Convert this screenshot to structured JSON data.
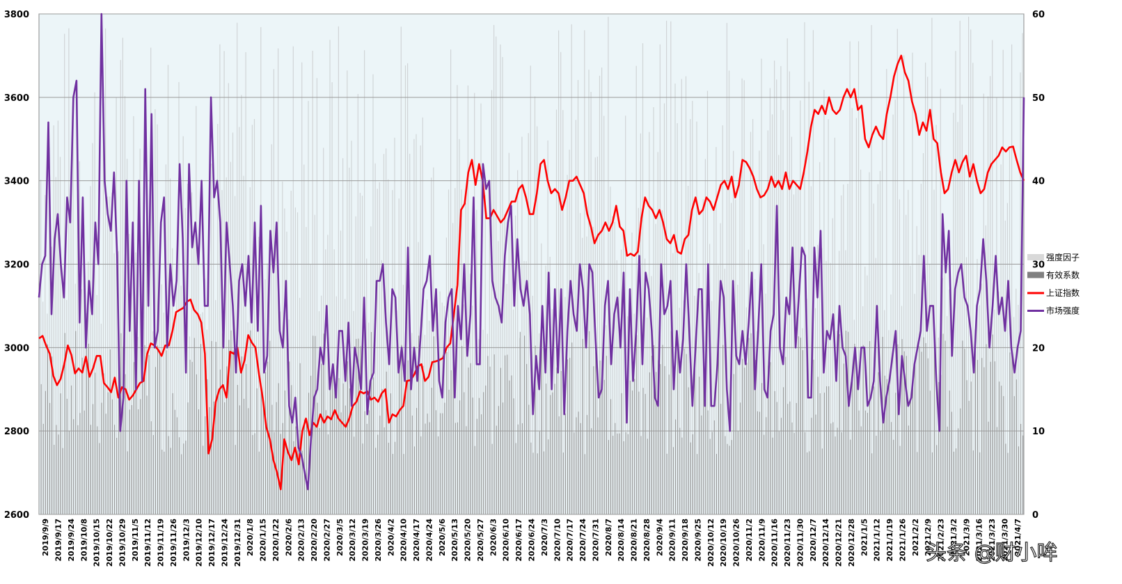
{
  "chart_data": {
    "type": "line",
    "title": "",
    "left_axis": {
      "min": 2600,
      "max": 3800,
      "ticks": [
        2600,
        2800,
        3000,
        3200,
        3400,
        3600,
        3800
      ]
    },
    "right_axis": {
      "min": 0,
      "max": 60,
      "ticks": [
        0,
        10,
        20,
        30,
        40,
        50,
        60
      ]
    },
    "x_labels": [
      "2019/9/9",
      "2019/9/17",
      "2019/9/24",
      "2019/10/8",
      "2019/10/15",
      "2019/10/22",
      "2019/10/29",
      "2019/11/5",
      "2019/11/12",
      "2019/11/19",
      "2019/11/26",
      "2019/12/3",
      "2019/12/10",
      "2019/12/17",
      "2019/12/24",
      "2019/12/31",
      "2020/1/8",
      "2020/1/15",
      "2020/1/22",
      "2020/2/6",
      "2020/2/13",
      "2020/2/20",
      "2020/2/27",
      "2020/3/5",
      "2020/3/12",
      "2020/3/19",
      "2020/3/26",
      "2020/4/2",
      "2020/4/10",
      "2020/4/17",
      "2020/4/24",
      "2020/5/6",
      "2020/5/13",
      "2020/5/20",
      "2020/5/27",
      "2020/6/3",
      "2020/6/10",
      "2020/6/17",
      "2020/6/24",
      "2020/7/3",
      "2020/7/10",
      "2020/7/17",
      "2020/7/24",
      "2020/7/31",
      "2020/8/7",
      "2020/8/14",
      "2020/8/21",
      "2020/8/28",
      "2020/9/4",
      "2020/9/11",
      "2020/9/18",
      "2020/9/25",
      "2020/10/12",
      "2020/10/19",
      "2020/10/26",
      "2020/11/2",
      "2020/11/9",
      "2020/11/16",
      "2020/11/23",
      "2020/11/30",
      "2020/12/7",
      "2020/12/14",
      "2020/12/21",
      "2020/12/28",
      "2021/1/5",
      "2021/1/12",
      "2021/1/19",
      "2021/1/26",
      "2021/2/2",
      "2021/2/9",
      "2021/2/23",
      "2021/3/2",
      "2021/3/9",
      "2021/3/16",
      "2021/3/23",
      "2021/3/30",
      "2021/4/7"
    ],
    "series": [
      {
        "name": "上证指数",
        "axis": "left",
        "color": "#ff0000",
        "values": [
          3022,
          3028,
          3004,
          2985,
          2932,
          2910,
          2925,
          2960,
          3005,
          2982,
          2938,
          2950,
          2940,
          2978,
          2930,
          2950,
          2980,
          2980,
          2915,
          2905,
          2893,
          2928,
          2880,
          2905,
          2900,
          2875,
          2885,
          2900,
          2915,
          2920,
          2985,
          3010,
          3005,
          2995,
          2980,
          3005,
          3005,
          3040,
          3085,
          3090,
          3095,
          3110,
          3115,
          3090,
          3080,
          3060,
          2985,
          2746,
          2780,
          2870,
          2900,
          2910,
          2880,
          2990,
          2985,
          3000,
          2940,
          2970,
          3030,
          3012,
          3000,
          2935,
          2880,
          2810,
          2780,
          2730,
          2700,
          2660,
          2780,
          2750,
          2730,
          2760,
          2720,
          2800,
          2830,
          2790,
          2820,
          2810,
          2840,
          2820,
          2835,
          2828,
          2850,
          2830,
          2820,
          2810,
          2830,
          2860,
          2870,
          2895,
          2890,
          2895,
          2875,
          2880,
          2870,
          2890,
          2900,
          2820,
          2840,
          2835,
          2850,
          2860,
          2920,
          2922,
          2935,
          2955,
          2960,
          2920,
          2930,
          2965,
          2967,
          2970,
          2975,
          3000,
          3010,
          3080,
          3150,
          3330,
          3345,
          3420,
          3450,
          3390,
          3440,
          3400,
          3310,
          3310,
          3330,
          3315,
          3300,
          3310,
          3330,
          3350,
          3350,
          3380,
          3390,
          3360,
          3320,
          3320,
          3370,
          3440,
          3450,
          3400,
          3370,
          3380,
          3370,
          3330,
          3360,
          3400,
          3400,
          3410,
          3390,
          3370,
          3320,
          3290,
          3250,
          3270,
          3280,
          3300,
          3280,
          3300,
          3340,
          3290,
          3280,
          3220,
          3225,
          3220,
          3230,
          3310,
          3360,
          3340,
          3330,
          3310,
          3330,
          3300,
          3260,
          3250,
          3270,
          3230,
          3225,
          3260,
          3270,
          3330,
          3360,
          3320,
          3330,
          3360,
          3350,
          3330,
          3360,
          3390,
          3400,
          3380,
          3410,
          3360,
          3390,
          3450,
          3445,
          3430,
          3410,
          3380,
          3360,
          3365,
          3380,
          3410,
          3385,
          3400,
          3380,
          3420,
          3380,
          3400,
          3390,
          3380,
          3420,
          3470,
          3530,
          3570,
          3560,
          3580,
          3560,
          3600,
          3570,
          3560,
          3570,
          3600,
          3620,
          3600,
          3620,
          3570,
          3580,
          3500,
          3480,
          3510,
          3530,
          3510,
          3500,
          3560,
          3600,
          3650,
          3680,
          3700,
          3660,
          3640,
          3590,
          3560,
          3510,
          3540,
          3520,
          3570,
          3500,
          3490,
          3420,
          3370,
          3380,
          3420,
          3450,
          3420,
          3445,
          3460,
          3410,
          3440,
          3400,
          3370,
          3380,
          3420,
          3440,
          3450,
          3460,
          3480,
          3470,
          3480,
          3482,
          3450,
          3420,
          3400
        ]
      },
      {
        "name": "市场强度",
        "axis": "right",
        "color": "#7030a0",
        "values": [
          26,
          30,
          31,
          47,
          24,
          33,
          36,
          30,
          26,
          38,
          35,
          50,
          52,
          23,
          38,
          20,
          28,
          24,
          35,
          30,
          60,
          40,
          36,
          34,
          41,
          31,
          10,
          14,
          40,
          22,
          35,
          15,
          40,
          16,
          51,
          25,
          48,
          20,
          22,
          35,
          38,
          20,
          30,
          25,
          28,
          42,
          33,
          17,
          42,
          32,
          35,
          30,
          40,
          25,
          25,
          50,
          38,
          40,
          35,
          20,
          35,
          30,
          25,
          17,
          28,
          30,
          25,
          31,
          23,
          35,
          22,
          37,
          17,
          19,
          34,
          29,
          35,
          22,
          20,
          28,
          13,
          11,
          14,
          8,
          7,
          5,
          3,
          9,
          14,
          15,
          20,
          18,
          25,
          15,
          18,
          14,
          22,
          22,
          16,
          23,
          13,
          20,
          18,
          15,
          26,
          12,
          16,
          17,
          28,
          28,
          30,
          23,
          18,
          27,
          26,
          17,
          20,
          16,
          32,
          15,
          20,
          16,
          21,
          27,
          28,
          31,
          22,
          27,
          16,
          14,
          23,
          26,
          27,
          14,
          25,
          21,
          30,
          19,
          24,
          38,
          18,
          18,
          42,
          39,
          40,
          28,
          26,
          25,
          23,
          31,
          35,
          37,
          25,
          33,
          27,
          25,
          28,
          24,
          12,
          19,
          15,
          25,
          17,
          29,
          15,
          27,
          17,
          27,
          12,
          22,
          28,
          24,
          22,
          30,
          27,
          20,
          30,
          29,
          21,
          14,
          15,
          25,
          28,
          18,
          24,
          26,
          20,
          29,
          11,
          27,
          16,
          22,
          31,
          18,
          29,
          27,
          22,
          14,
          13,
          30,
          24,
          25,
          28,
          15,
          22,
          17,
          21,
          30,
          22,
          13,
          20,
          27,
          27,
          13,
          30,
          13,
          13,
          18,
          28,
          26,
          15,
          10,
          28,
          19,
          18,
          22,
          18,
          23,
          29,
          15,
          22,
          30,
          15,
          14,
          22,
          24,
          37,
          20,
          18,
          26,
          24,
          32,
          20,
          26,
          32,
          31,
          14,
          14,
          32,
          26,
          34,
          17,
          22,
          21,
          24,
          16,
          25,
          20,
          19,
          13,
          16,
          20,
          15,
          20,
          20,
          13,
          14,
          16,
          25,
          16,
          11,
          14,
          16,
          19,
          22,
          12,
          19,
          16,
          13,
          14,
          18,
          20,
          22,
          31,
          22,
          25,
          25,
          16,
          10,
          36,
          29,
          34,
          19,
          27,
          29,
          30,
          26,
          25,
          22,
          17,
          25,
          27,
          33,
          28,
          20,
          25,
          31,
          24,
          26,
          22,
          28,
          20,
          17,
          20,
          22,
          50
        ]
      },
      {
        "name": "强度因子",
        "axis": "right",
        "color": "#d9d9d9",
        "values": []
      },
      {
        "name": "有效系数",
        "axis": "right",
        "color": "#808080",
        "values": []
      }
    ],
    "legend_position": "right",
    "grid": true
  },
  "watermark": "头条 @财小哞"
}
